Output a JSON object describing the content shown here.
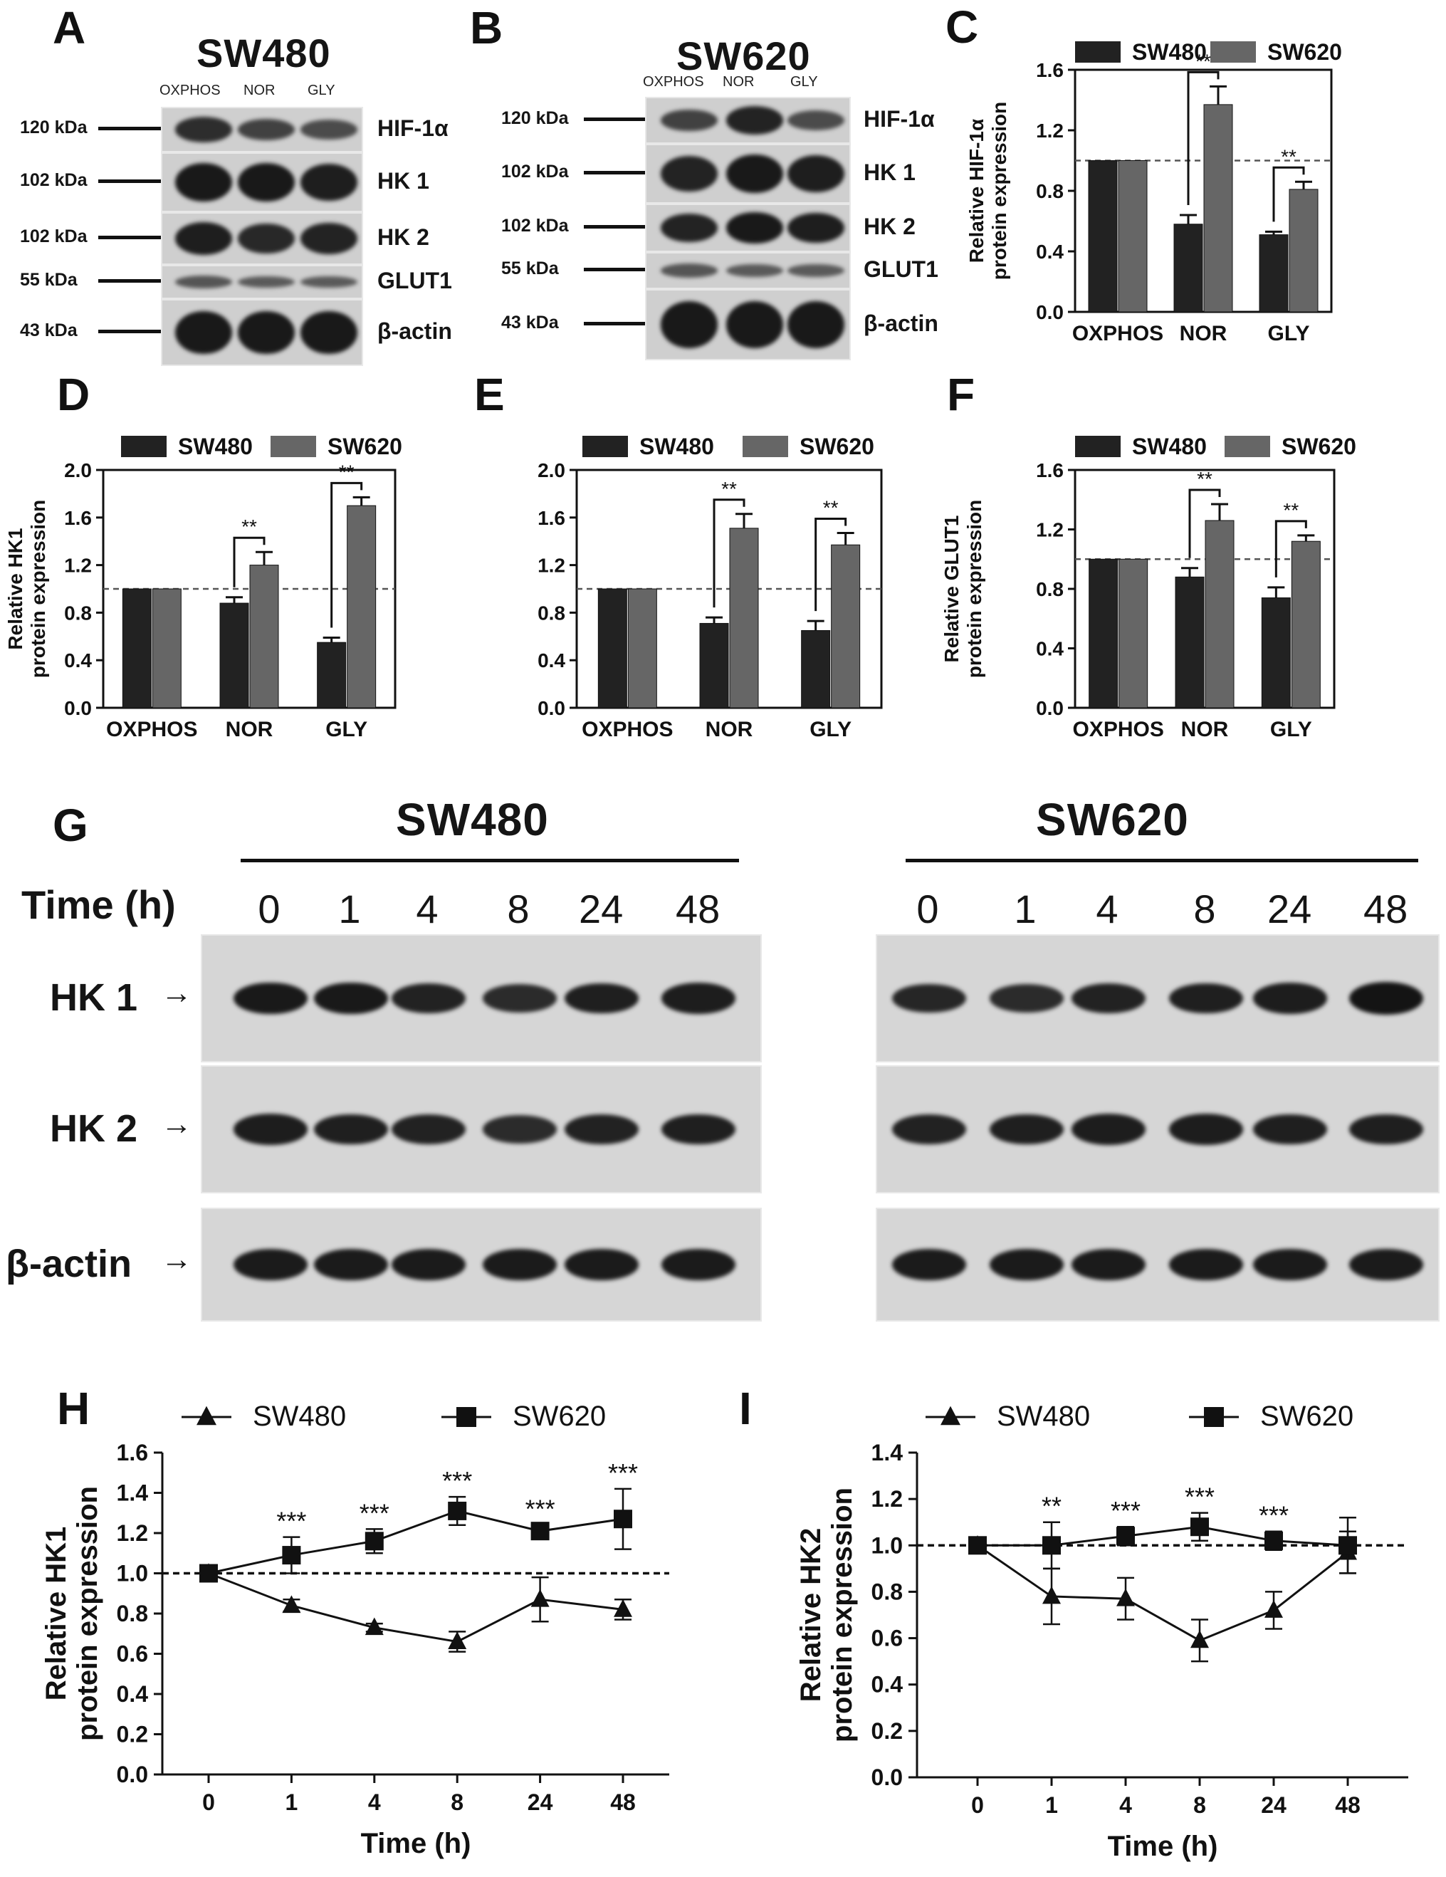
{
  "panels": {
    "A": {
      "letter": "A",
      "title": "SW480",
      "lanes": [
        "OXPHOS",
        "NOR",
        "GLY"
      ],
      "rows": [
        {
          "kda": "120 kDa",
          "protein": "HIF-1α",
          "intensity": [
            0.75,
            0.55,
            0.45
          ]
        },
        {
          "kda": "102 kDa",
          "protein": "HK 1",
          "intensity": [
            0.95,
            0.95,
            0.9
          ]
        },
        {
          "kda": "102 kDa",
          "protein": "HK 2",
          "intensity": [
            0.9,
            0.8,
            0.85
          ]
        },
        {
          "kda": "55 kDa",
          "protein": "GLUT1",
          "intensity": [
            0.35,
            0.3,
            0.3
          ]
        },
        {
          "kda": "43 kDa",
          "protein": "β-actin",
          "intensity": [
            0.95,
            0.95,
            0.95
          ]
        }
      ]
    },
    "B": {
      "letter": "B",
      "title": "SW620",
      "lanes": [
        "OXPHOS",
        "NOR",
        "GLY"
      ],
      "rows": [
        {
          "kda": "120 kDa",
          "protein": "HIF-1α",
          "intensity": [
            0.55,
            0.85,
            0.45
          ]
        },
        {
          "kda": "102 kDa",
          "protein": "HK 1",
          "intensity": [
            0.85,
            0.95,
            0.9
          ]
        },
        {
          "kda": "102 kDa",
          "protein": "HK 2",
          "intensity": [
            0.85,
            0.95,
            0.9
          ]
        },
        {
          "kda": "55 kDa",
          "protein": "GLUT1",
          "intensity": [
            0.35,
            0.3,
            0.3
          ]
        },
        {
          "kda": "43 kDa",
          "protein": "β-actin",
          "intensity": [
            0.95,
            0.95,
            0.95
          ]
        }
      ]
    },
    "G": {
      "letter": "G",
      "time_label": "Time (h)",
      "groups": [
        {
          "title": "SW480",
          "times": [
            "0",
            "1",
            "4",
            "8",
            "24",
            "48"
          ]
        },
        {
          "title": "SW620",
          "times": [
            "0",
            "1",
            "4",
            "8",
            "24",
            "48"
          ]
        }
      ],
      "rows": [
        {
          "protein": "HK 1",
          "sw480": [
            0.95,
            0.95,
            0.85,
            0.75,
            0.88,
            0.9
          ],
          "sw620": [
            0.8,
            0.75,
            0.85,
            0.88,
            0.9,
            1.0
          ]
        },
        {
          "protein": "HK 2",
          "sw480": [
            0.9,
            0.88,
            0.85,
            0.75,
            0.85,
            0.88
          ],
          "sw620": [
            0.85,
            0.88,
            0.9,
            0.9,
            0.88,
            0.88
          ]
        },
        {
          "protein": "β-actin",
          "sw480": [
            0.92,
            0.92,
            0.92,
            0.92,
            0.92,
            0.92
          ],
          "sw620": [
            0.92,
            0.92,
            0.92,
            0.92,
            0.92,
            0.92
          ]
        }
      ]
    }
  },
  "chart_data": [
    {
      "id": "C",
      "letter": "C",
      "type": "bar",
      "categories": [
        "OXPHOS",
        "NOR",
        "GLY"
      ],
      "series": [
        {
          "name": "SW480",
          "values": [
            1.0,
            0.58,
            0.51
          ],
          "errors": [
            0,
            0.06,
            0.02
          ]
        },
        {
          "name": "SW620",
          "values": [
            1.0,
            1.37,
            0.81
          ],
          "errors": [
            0,
            0.12,
            0.05
          ]
        }
      ],
      "ylabel": "Relative HIF-1α protein expression",
      "ylim": [
        0,
        1.6
      ],
      "yticks": [
        "0.0",
        "0.4",
        "0.8",
        "1.2",
        "1.6"
      ],
      "reference_line": 1.0,
      "significance": [
        {
          "category": "NOR",
          "text": "**"
        },
        {
          "category": "GLY",
          "text": "**"
        }
      ],
      "legend": "top"
    },
    {
      "id": "D",
      "letter": "D",
      "type": "bar",
      "categories": [
        "OXPHOS",
        "NOR",
        "GLY"
      ],
      "series": [
        {
          "name": "SW480",
          "values": [
            1.0,
            0.88,
            0.55
          ],
          "errors": [
            0,
            0.05,
            0.04
          ]
        },
        {
          "name": "SW620",
          "values": [
            1.0,
            1.2,
            1.7
          ],
          "errors": [
            0,
            0.11,
            0.07
          ]
        }
      ],
      "ylabel": "Relative HK1 protein expression",
      "ylim": [
        0,
        2.0
      ],
      "yticks": [
        "0.0",
        "0.4",
        "0.8",
        "1.2",
        "1.6",
        "2.0"
      ],
      "reference_line": 1.0,
      "significance": [
        {
          "category": "NOR",
          "text": "**"
        },
        {
          "category": "GLY",
          "text": "**"
        }
      ],
      "legend": "top"
    },
    {
      "id": "E",
      "letter": "E",
      "type": "bar",
      "categories": [
        "OXPHOS",
        "NOR",
        "GLY"
      ],
      "series": [
        {
          "name": "SW480",
          "values": [
            1.0,
            0.71,
            0.65
          ],
          "errors": [
            0,
            0.05,
            0.08
          ]
        },
        {
          "name": "SW620",
          "values": [
            1.0,
            1.51,
            1.37
          ],
          "errors": [
            0,
            0.12,
            0.1
          ]
        }
      ],
      "ylabel": "",
      "ylim": [
        0,
        2.0
      ],
      "yticks": [
        "0.0",
        "0.4",
        "0.8",
        "1.2",
        "1.6",
        "2.0"
      ],
      "reference_line": 1.0,
      "significance": [
        {
          "category": "NOR",
          "text": "**"
        },
        {
          "category": "GLY",
          "text": "**"
        }
      ],
      "legend": "top"
    },
    {
      "id": "F",
      "letter": "F",
      "type": "bar",
      "categories": [
        "OXPHOS",
        "NOR",
        "GLY"
      ],
      "series": [
        {
          "name": "SW480",
          "values": [
            1.0,
            0.88,
            0.74
          ],
          "errors": [
            0,
            0.06,
            0.07
          ]
        },
        {
          "name": "SW620",
          "values": [
            1.0,
            1.26,
            1.12
          ],
          "errors": [
            0,
            0.11,
            0.04
          ]
        }
      ],
      "ylabel": "Relative GLUT1 protein expression",
      "ylim": [
        0,
        1.6
      ],
      "yticks": [
        "0.0",
        "0.4",
        "0.8",
        "1.2",
        "1.6"
      ],
      "reference_line": 1.0,
      "significance": [
        {
          "category": "NOR",
          "text": "**"
        },
        {
          "category": "GLY",
          "text": "**"
        }
      ],
      "legend": "top"
    },
    {
      "id": "H",
      "letter": "H",
      "type": "line",
      "x": [
        "0",
        "1",
        "4",
        "8",
        "24",
        "48"
      ],
      "series": [
        {
          "name": "SW480",
          "marker": "triangle",
          "values": [
            1.0,
            0.84,
            0.73,
            0.66,
            0.87,
            0.82
          ],
          "errors": [
            0,
            0.03,
            0.02,
            0.05,
            0.11,
            0.05
          ]
        },
        {
          "name": "SW620",
          "marker": "square",
          "values": [
            1.0,
            1.09,
            1.16,
            1.31,
            1.21,
            1.27
          ],
          "errors": [
            0,
            0.09,
            0.06,
            0.07,
            0.03,
            0.15
          ]
        }
      ],
      "xlabel": "Time (h)",
      "ylabel": "Relative HK1 protein expression",
      "ylim": [
        0,
        1.6
      ],
      "yticks": [
        "0.0",
        "0.2",
        "0.4",
        "0.6",
        "0.8",
        "1.0",
        "1.2",
        "1.4",
        "1.6"
      ],
      "reference_line": 1.0,
      "significance": [
        "",
        "***",
        "***",
        "***",
        "***",
        "***"
      ],
      "legend": "top"
    },
    {
      "id": "I",
      "letter": "I",
      "type": "line",
      "x": [
        "0",
        "1",
        "4",
        "8",
        "24",
        "48"
      ],
      "series": [
        {
          "name": "SW480",
          "marker": "triangle",
          "values": [
            1.0,
            0.78,
            0.77,
            0.59,
            0.72,
            0.97
          ],
          "errors": [
            0,
            0.12,
            0.09,
            0.09,
            0.08,
            0.09
          ]
        },
        {
          "name": "SW620",
          "marker": "square",
          "values": [
            1.0,
            1.0,
            1.04,
            1.08,
            1.02,
            1.0
          ],
          "errors": [
            0,
            0.1,
            0.04,
            0.06,
            0.04,
            0.12
          ]
        }
      ],
      "xlabel": "Time (h)",
      "ylabel": "Relative HK2 protein expression",
      "ylim": [
        0,
        1.4
      ],
      "yticks": [
        "0.0",
        "0.2",
        "0.4",
        "0.6",
        "0.8",
        "1.0",
        "1.2",
        "1.4"
      ],
      "reference_line": 1.0,
      "significance": [
        "",
        "**",
        "***",
        "***",
        "***",
        ""
      ],
      "legend": "top"
    }
  ]
}
